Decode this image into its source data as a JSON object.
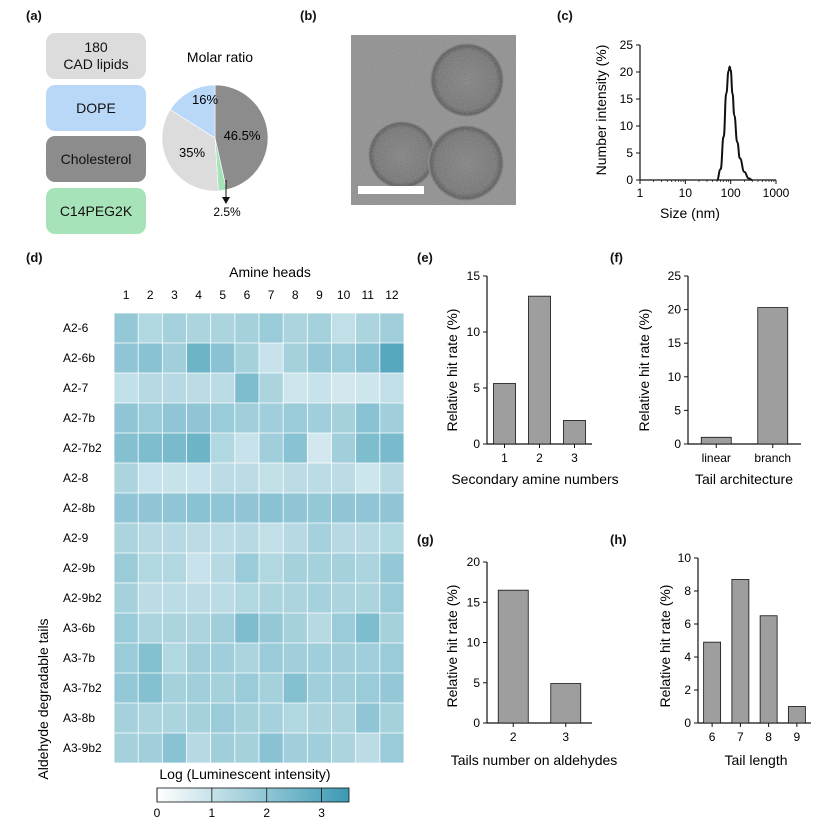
{
  "panels": {
    "a": "(a)",
    "b": "(b)",
    "c": "(c)",
    "d": "(d)",
    "e": "(e)",
    "f": "(f)",
    "g": "(g)",
    "h": "(h)"
  },
  "composition": {
    "items": [
      {
        "label": "180\nCAD lipids",
        "color": "#dcdcdc"
      },
      {
        "label": "DOPE",
        "color": "#b9d8f8"
      },
      {
        "label": "Cholesterol",
        "color": "#8c8c8c"
      },
      {
        "label": "C14PEG2K",
        "color": "#a6e3b8"
      }
    ]
  },
  "colors": {
    "lipid": "#dcdcdc",
    "dope": "#b9d8f8",
    "cholesterol": "#8c8c8c",
    "peg": "#a6e3b8",
    "bar": "#9e9e9e",
    "heat_low": "#ffffff",
    "heat_high": "#3b9ab4"
  },
  "chart_data": [
    {
      "id": "a",
      "type": "pie",
      "title": "Molar ratio",
      "slices": [
        {
          "label": "46.5%",
          "value": 46.5,
          "color": "#8c8c8c"
        },
        {
          "label": "2.5%",
          "value": 2.5,
          "color": "#a6e3b8"
        },
        {
          "label": "35%",
          "value": 35,
          "color": "#dcdcdc"
        },
        {
          "label": "16%",
          "value": 16,
          "color": "#b9d8f8"
        }
      ]
    },
    {
      "id": "c",
      "type": "line",
      "xlabel": "Size (nm)",
      "ylabel": "Number intensity (%)",
      "xscale": "log",
      "xlim": [
        1,
        1000
      ],
      "ylim": [
        0,
        25
      ],
      "xticks": [
        "1",
        "10",
        "100",
        "1000"
      ],
      "yticks": [
        "0",
        "5",
        "10",
        "15",
        "20",
        "25"
      ],
      "x": [
        50,
        60,
        70,
        80,
        90,
        95,
        100,
        110,
        120,
        140,
        160,
        200,
        250,
        300
      ],
      "y": [
        0,
        2,
        8,
        16,
        20.2,
        21,
        20.3,
        16,
        12,
        7,
        4,
        1.5,
        0.3,
        0
      ]
    },
    {
      "id": "d",
      "type": "heatmap",
      "xlabel": "Amine heads",
      "ylabel": "Aldehyde degradable tails",
      "colorbar_label": "Log (Luminescent intensity)",
      "colorbar_ticks": [
        "0",
        "1",
        "2",
        "3"
      ],
      "color_range": [
        0,
        3.5
      ],
      "columns": [
        "1",
        "2",
        "3",
        "4",
        "5",
        "6",
        "7",
        "8",
        "9",
        "10",
        "11",
        "12"
      ],
      "rows": [
        "A2-6",
        "A2-6b",
        "A2-7",
        "A2-7b",
        "A2-7b2",
        "A2-8",
        "A2-8b",
        "A2-9",
        "A2-9b",
        "A2-9b2",
        "A3-6b",
        "A3-7b",
        "A3-7b2",
        "A3-8b",
        "A3-9b2"
      ],
      "values": [
        [
          1.9,
          1.4,
          1.6,
          1.5,
          1.5,
          1.6,
          1.8,
          1.5,
          1.6,
          1.1,
          1.5,
          1.7
        ],
        [
          2.0,
          2.1,
          1.7,
          2.6,
          2.1,
          1.6,
          1.0,
          1.6,
          1.9,
          1.8,
          2.1,
          3.0
        ],
        [
          1.1,
          1.3,
          1.3,
          1.2,
          1.2,
          2.3,
          1.5,
          0.9,
          1.0,
          0.8,
          0.9,
          1.1
        ],
        [
          2.0,
          1.8,
          2.0,
          2.0,
          1.8,
          1.7,
          1.7,
          1.8,
          1.7,
          1.6,
          2.1,
          1.7
        ],
        [
          2.2,
          2.3,
          2.4,
          2.6,
          1.4,
          1.0,
          1.7,
          2.1,
          0.8,
          1.7,
          2.3,
          2.4
        ],
        [
          1.5,
          1.0,
          1.0,
          1.0,
          1.2,
          1.2,
          1.1,
          1.2,
          1.2,
          1.2,
          0.9,
          1.3
        ],
        [
          2.0,
          2.0,
          2.0,
          2.1,
          2.0,
          2.0,
          2.1,
          2.0,
          1.9,
          2.0,
          2.0,
          2.0
        ],
        [
          1.5,
          1.3,
          1.3,
          1.2,
          1.2,
          1.3,
          1.1,
          1.3,
          1.6,
          1.3,
          1.3,
          1.4
        ],
        [
          1.8,
          1.4,
          1.4,
          1.0,
          1.3,
          1.8,
          1.4,
          1.6,
          1.6,
          1.6,
          1.5,
          1.9
        ],
        [
          1.6,
          1.2,
          1.2,
          1.2,
          1.2,
          1.4,
          1.5,
          1.5,
          1.6,
          1.5,
          1.5,
          1.8
        ],
        [
          1.8,
          1.5,
          1.5,
          1.5,
          1.7,
          2.3,
          1.9,
          1.6,
          1.3,
          1.8,
          2.3,
          1.6
        ],
        [
          1.8,
          2.2,
          1.4,
          1.7,
          1.7,
          1.5,
          1.8,
          1.7,
          1.7,
          1.7,
          1.7,
          1.8
        ],
        [
          1.9,
          2.2,
          1.6,
          1.7,
          1.6,
          1.8,
          1.6,
          2.2,
          1.7,
          1.7,
          1.8,
          1.9
        ],
        [
          1.6,
          1.5,
          1.5,
          1.6,
          1.8,
          1.6,
          1.6,
          1.4,
          1.5,
          1.5,
          2.0,
          1.6
        ],
        [
          1.6,
          1.7,
          2.1,
          1.3,
          1.7,
          1.6,
          2.1,
          1.7,
          1.7,
          1.5,
          1.2,
          1.8
        ]
      ]
    },
    {
      "id": "e",
      "type": "bar",
      "categories": [
        "1",
        "2",
        "3"
      ],
      "values": [
        5.4,
        13.2,
        2.1
      ],
      "xlabel": "Secondary amine numbers",
      "ylabel": "Relative hit rate (%)",
      "ylim": [
        0,
        15
      ],
      "yticks": [
        "0",
        "5",
        "10",
        "15"
      ]
    },
    {
      "id": "f",
      "type": "bar",
      "categories": [
        "linear",
        "branch"
      ],
      "values": [
        1.0,
        20.3
      ],
      "xlabel": "Tail architecture",
      "ylabel": "Relative hit rate (%)",
      "ylim": [
        0,
        25
      ],
      "yticks": [
        "0",
        "5",
        "10",
        "15",
        "20",
        "25"
      ]
    },
    {
      "id": "g",
      "type": "bar",
      "categories": [
        "2",
        "3"
      ],
      "values": [
        16.5,
        4.9
      ],
      "xlabel": "Tails number on aldehydes",
      "ylabel": "Relative hit rate (%)",
      "ylim": [
        0,
        20
      ],
      "yticks": [
        "0",
        "5",
        "10",
        "15",
        "20"
      ]
    },
    {
      "id": "h",
      "type": "bar",
      "categories": [
        "6",
        "7",
        "8",
        "9"
      ],
      "values": [
        4.9,
        8.7,
        6.5,
        1.0
      ],
      "xlabel": "Tail length",
      "ylabel": "Relative hit rate (%)",
      "ylim": [
        0,
        10
      ],
      "yticks": [
        "0",
        "2",
        "4",
        "6",
        "8",
        "10"
      ]
    }
  ]
}
